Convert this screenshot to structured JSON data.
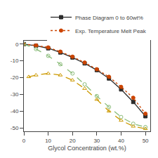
{
  "chart_data": {
    "type": "line",
    "xlabel": "Glycol Concentration (wt.%)",
    "xlim": [
      0,
      52
    ],
    "ylim": [
      -52,
      2
    ],
    "xticks": [
      0,
      10,
      20,
      30,
      40,
      50
    ],
    "yticks": [
      -50,
      -40,
      -30,
      -20,
      -10,
      0
    ],
    "grid": false,
    "legend": "upper right",
    "series": [
      {
        "name": "Phase Diagram 0 to 60wt%",
        "color": "#2c2c2c",
        "marker": "square",
        "line_style": "solid",
        "x": [
          0,
          5,
          10,
          15,
          20,
          25,
          30,
          35,
          40,
          45,
          50
        ],
        "values": [
          0,
          -1.0,
          -2.5,
          -5.0,
          -8.0,
          -11.5,
          -15.5,
          -20.5,
          -27.0,
          -34.5,
          -43.0
        ]
      },
      {
        "name": "Exp. Temperature Melt Peak",
        "color": "#cc4400",
        "marker": "circle",
        "line_style": "dotted",
        "x": [
          0,
          5,
          10,
          15,
          20,
          25,
          30,
          35,
          40,
          45,
          50
        ],
        "values": [
          0,
          -0.8,
          -2.0,
          -4.5,
          -7.5,
          -11.0,
          -15.0,
          -19.5,
          -25.5,
          -32.0,
          -41.5
        ]
      },
      {
        "color": "#88bb77",
        "marker": "circle-open",
        "line_style": "dashed",
        "x": [
          0,
          5,
          10,
          15,
          20,
          25,
          30,
          35,
          40,
          45,
          50
        ],
        "values": [
          0,
          -3.0,
          -7.0,
          -12.0,
          -17.5,
          -24.0,
          -31.0,
          -37.5,
          -43.5,
          -47.5,
          -49.5
        ]
      },
      {
        "color": "#cc9900",
        "marker": "triangle-up-open",
        "line_style": "dashed",
        "x": [
          2,
          5,
          10,
          15,
          20,
          25,
          30,
          35,
          40,
          45,
          50
        ],
        "values": [
          -19.5,
          -18.5,
          -17.5,
          -18.5,
          -21.5,
          -26.5,
          -33.0,
          -40.0,
          -45.5,
          -49.0,
          -50.5
        ]
      }
    ]
  }
}
